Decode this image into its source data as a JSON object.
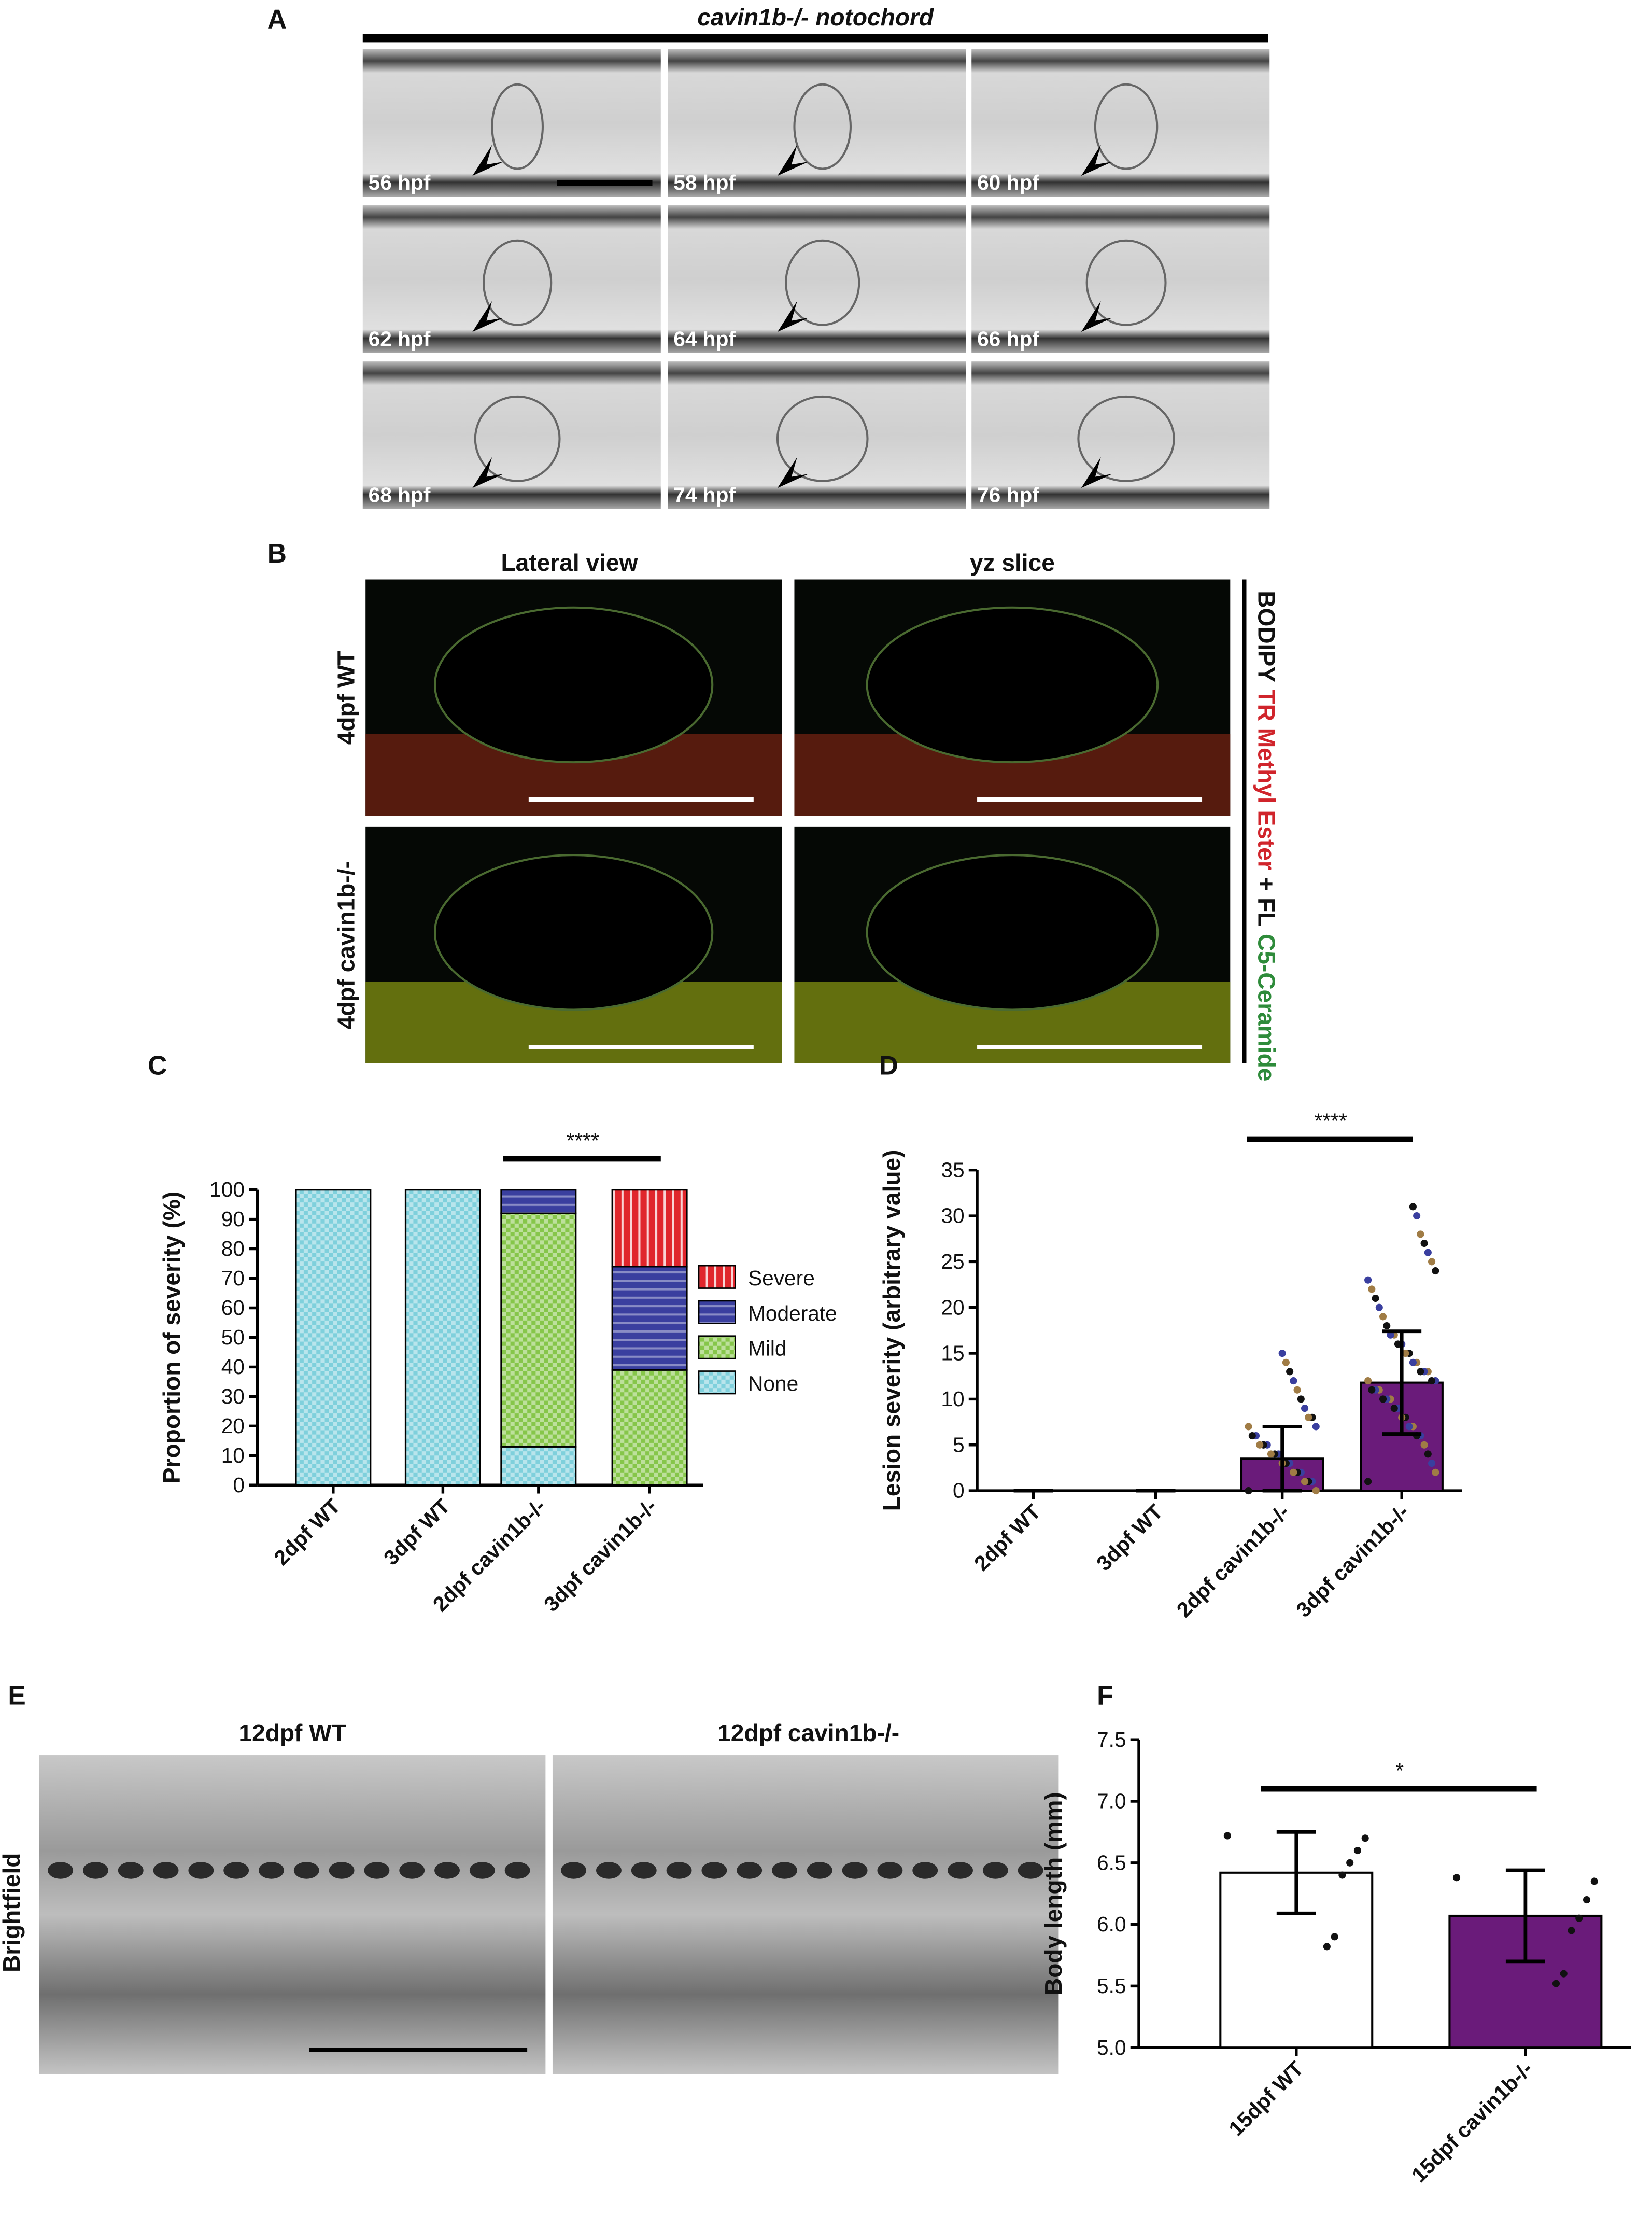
{
  "panels": {
    "A": {
      "label": "A",
      "title": "cavin1b-/- notochord",
      "frames": [
        "56 hpf",
        "58 hpf",
        "60 hpf",
        "62 hpf",
        "64 hpf",
        "66 hpf",
        "68 hpf",
        "74 hpf",
        "76 hpf"
      ]
    },
    "B": {
      "label": "B",
      "columns": [
        "Lateral view",
        "yz slice"
      ],
      "rows": [
        "4dpf WT",
        "4dpf cavin1b-/-"
      ],
      "stain": [
        {
          "text": "BODIPY",
          "color": "#111111"
        },
        {
          "text": "TR Methyl Ester",
          "color": "#d0242b"
        },
        {
          "text": "+ FL",
          "color": "#111111"
        },
        {
          "text": "C5-Ceramide",
          "color": "#2e8b3a"
        }
      ]
    },
    "E": {
      "label": "E",
      "columns": [
        "12dpf WT",
        "12dpf cavin1b-/-"
      ],
      "row": "Brightfield"
    }
  },
  "chart_data": [
    {
      "type": "stacked_bar",
      "label": "C",
      "ylabel": "Proportion of severity  (%)",
      "categories": [
        "2dpf WT",
        "3dpf WT",
        "2dpf cavin1b-/-",
        "3dpf cavin1b-/-"
      ],
      "series": [
        {
          "name": "None",
          "color": "#7fd0dc",
          "values": [
            100,
            100,
            13,
            0
          ]
        },
        {
          "name": "Mild",
          "color": "#86c64a",
          "values": [
            0,
            0,
            79,
            39
          ]
        },
        {
          "name": "Moderate",
          "color": "#3a3f9f",
          "values": [
            0,
            0,
            8,
            35
          ]
        },
        {
          "name": "Severe",
          "color": "#e0262c",
          "values": [
            0,
            0,
            0,
            26
          ]
        }
      ],
      "ylim": [
        0,
        100
      ],
      "yticks": [
        0,
        10,
        20,
        30,
        40,
        50,
        60,
        70,
        80,
        90,
        100
      ],
      "annotation": {
        "text": "****",
        "categories": [
          "2dpf cavin1b-/-",
          "3dpf cavin1b-/-"
        ]
      }
    },
    {
      "type": "bar_scatter",
      "label": "D",
      "ylabel": "Lesion severity (arbitrary value)",
      "categories": [
        "2dpf WT",
        "3dpf WT",
        "2dpf cavin1b-/-",
        "3dpf cavin1b-/-"
      ],
      "values": [
        0,
        0,
        3.5,
        11.8
      ],
      "errors": [
        0,
        0,
        3.5,
        5.6
      ],
      "bar_colors": [
        "#6a1b7a",
        "#6a1b7a",
        "#6a1b7a",
        "#6a1b7a"
      ],
      "points": [
        [],
        [],
        [
          0,
          0,
          1,
          1,
          1,
          2,
          2,
          2,
          3,
          3,
          3,
          4,
          4,
          4,
          5,
          5,
          5,
          6,
          6,
          7,
          7,
          8,
          8,
          9,
          10,
          11,
          12,
          13,
          14,
          15
        ],
        [
          1,
          2,
          3,
          4,
          5,
          6,
          6,
          7,
          7,
          8,
          8,
          9,
          9,
          10,
          10,
          10,
          11,
          11,
          11,
          12,
          12,
          12,
          13,
          13,
          13,
          14,
          14,
          15,
          15,
          16,
          16,
          17,
          17,
          18,
          19,
          20,
          21,
          22,
          23,
          24,
          25,
          26,
          27,
          28,
          30,
          31
        ]
      ],
      "point_colors": [
        "#111111",
        "#a07c45",
        "#3a3f9f"
      ],
      "ylim": [
        0,
        35
      ],
      "yticks": [
        0,
        5,
        10,
        15,
        20,
        25,
        30,
        35
      ],
      "annotation": {
        "text": "****",
        "categories": [
          "2dpf cavin1b-/-",
          "3dpf cavin1b-/-"
        ]
      }
    },
    {
      "type": "bar_scatter",
      "label": "F",
      "ylabel": "Body length (mm)",
      "categories": [
        "15dpf WT",
        "15dpf cavin1b-/-"
      ],
      "values": [
        6.42,
        6.07
      ],
      "errors": [
        0.33,
        0.37
      ],
      "bar_colors": [
        "#ffffff",
        "#6a1b7a"
      ],
      "points": [
        [
          6.72,
          6.7,
          6.6,
          6.5,
          6.4,
          5.9,
          5.82
        ],
        [
          6.38,
          6.35,
          6.2,
          6.05,
          5.95,
          5.6,
          5.52
        ]
      ],
      "point_colors": [
        "#111111"
      ],
      "ylim": [
        5,
        7.5
      ],
      "yticks": [
        {
          "value": 5,
          "label": "5.0"
        },
        5.5,
        {
          "value": 6,
          "label": "6.0"
        },
        6.5,
        {
          "value": 7,
          "label": "7.0"
        },
        7.5
      ],
      "annotation": {
        "text": "*",
        "categories": [
          "15dpf WT",
          "15dpf cavin1b-/-"
        ]
      }
    }
  ]
}
